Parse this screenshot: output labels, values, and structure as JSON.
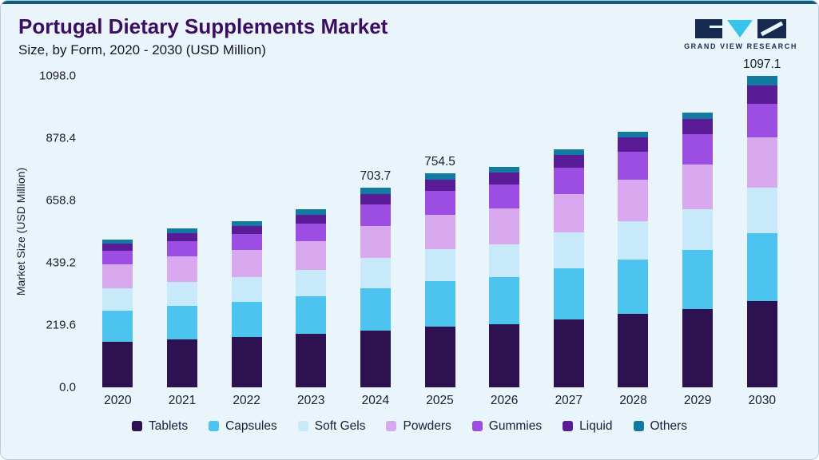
{
  "header": {
    "title": "Portugal Dietary Supplements Market",
    "subtitle": "Size, by Form, 2020 - 2030 (USD Million)",
    "logo_text": "GRAND VIEW RESEARCH"
  },
  "colors": {
    "accent_bar": "#0c607c",
    "title": "#3c0e63",
    "background": "#eaf4fb"
  },
  "chart_data": {
    "type": "bar",
    "stacked": true,
    "title": "Portugal Dietary Supplements Market Size, by Form, 2020 - 2030 (USD Million)",
    "xlabel": "",
    "ylabel": "Market Size (USD Million)",
    "ylim": [
      0,
      1098.0
    ],
    "yticks": [
      0.0,
      219.6,
      439.2,
      658.8,
      878.4,
      1098.0
    ],
    "grid": false,
    "legend_position": "bottom",
    "categories": [
      "2020",
      "2021",
      "2022",
      "2023",
      "2024",
      "2025",
      "2026",
      "2027",
      "2028",
      "2029",
      "2030"
    ],
    "series": [
      {
        "name": "Tablets",
        "color": "#2e1150",
        "values": [
          160,
          170,
          177,
          188,
          200,
          215,
          222,
          240,
          258,
          275,
          305
        ]
      },
      {
        "name": "Capsules",
        "color": "#4dc3ef",
        "values": [
          110,
          118,
          124,
          133,
          150,
          160,
          166,
          180,
          193,
          208,
          238
        ]
      },
      {
        "name": "Soft Gels",
        "color": "#c7e9fa",
        "values": [
          78,
          84,
          88,
          94,
          106,
          113,
          117,
          126,
          135,
          145,
          161
        ]
      },
      {
        "name": "Powders",
        "color": "#d8a9ee",
        "values": [
          84,
          90,
          94,
          101,
          113,
          121,
          125,
          135,
          145,
          156,
          178
        ]
      },
      {
        "name": "Gummies",
        "color": "#9d4ee2",
        "values": [
          50,
          54,
          57,
          61,
          75,
          82,
          85,
          92,
          99,
          107,
          117
        ]
      },
      {
        "name": "Liquid",
        "color": "#5a1c96",
        "values": [
          25,
          28,
          29,
          32,
          38,
          41,
          42,
          46,
          50,
          54,
          64
        ]
      },
      {
        "name": "Others",
        "color": "#1279a0",
        "values": [
          14,
          16,
          16,
          18,
          21.7,
          22.5,
          21,
          21,
          22,
          23,
          34.1
        ]
      }
    ],
    "annotations": [
      {
        "category": "2024",
        "text": "703.7"
      },
      {
        "category": "2025",
        "text": "754.5"
      },
      {
        "category": "2030",
        "text": "1097.1"
      }
    ]
  }
}
